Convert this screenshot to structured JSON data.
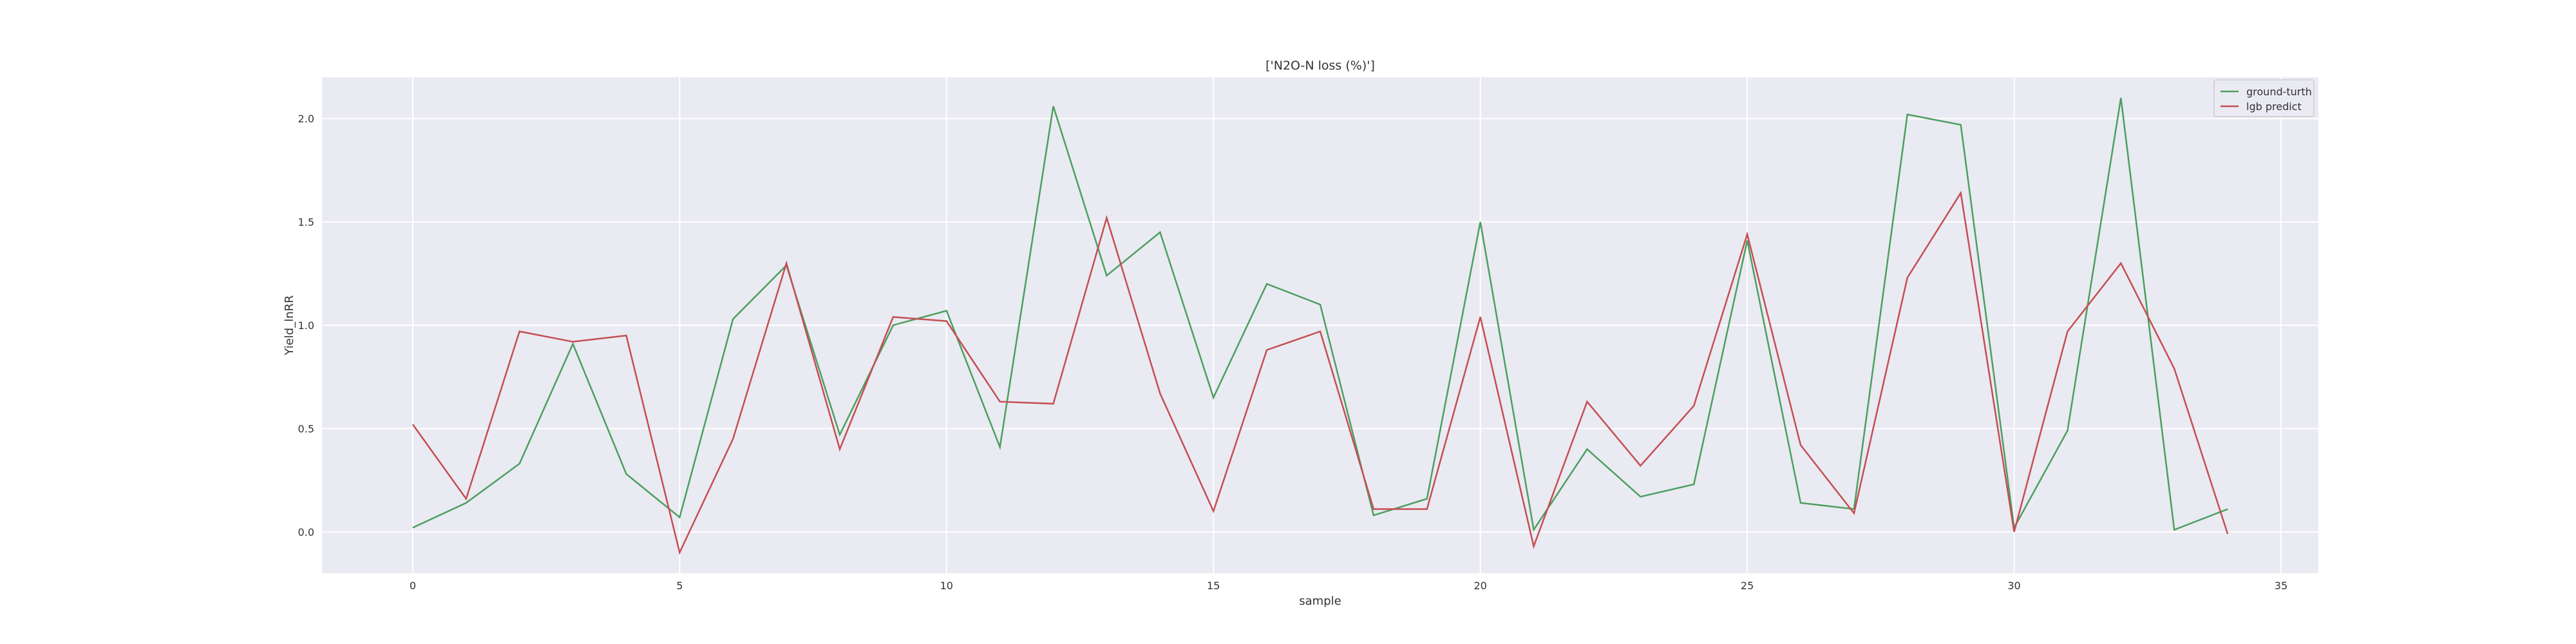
{
  "chart_data": {
    "type": "line",
    "title": "['N2O-N loss (%)']",
    "xlabel": "sample",
    "ylabel": "Yield_lnRR",
    "xlim": [
      -1.7,
      35.7
    ],
    "ylim": [
      -0.2,
      2.2
    ],
    "x_ticks": [
      0,
      5,
      10,
      15,
      20,
      25,
      30,
      35
    ],
    "y_ticks": [
      0.0,
      0.5,
      1.0,
      1.5,
      2.0
    ],
    "y_tick_labels": [
      "0.0",
      "0.5",
      "1.0",
      "1.5",
      "2.0"
    ],
    "grid": true,
    "legend_position": "top-right",
    "x": [
      0,
      1,
      2,
      3,
      4,
      5,
      6,
      7,
      8,
      9,
      10,
      11,
      12,
      13,
      14,
      15,
      16,
      17,
      18,
      19,
      20,
      21,
      22,
      23,
      24,
      25,
      26,
      27,
      28,
      29,
      30,
      31,
      32,
      33,
      34
    ],
    "series": [
      {
        "name": "ground-turth",
        "color": "#4c9f5f",
        "values": [
          0.02,
          0.14,
          0.33,
          0.91,
          0.28,
          0.07,
          1.03,
          1.29,
          0.47,
          1.0,
          1.07,
          0.41,
          2.06,
          1.24,
          1.45,
          0.65,
          1.2,
          1.1,
          0.08,
          0.16,
          1.5,
          0.01,
          0.4,
          0.17,
          0.23,
          1.41,
          0.14,
          0.11,
          2.02,
          1.97,
          0.02,
          0.49,
          2.1,
          0.01,
          0.11
        ]
      },
      {
        "name": "lgb predict",
        "color": "#c44e52",
        "values": [
          0.52,
          0.16,
          0.97,
          0.92,
          0.95,
          -0.1,
          0.45,
          1.3,
          0.4,
          1.04,
          1.02,
          0.63,
          0.62,
          1.52,
          0.67,
          0.1,
          0.88,
          0.97,
          0.11,
          0.11,
          1.04,
          -0.07,
          0.63,
          0.32,
          0.61,
          1.44,
          0.42,
          0.09,
          1.23,
          1.64,
          0.0,
          0.97,
          1.3,
          0.79,
          -0.01
        ]
      }
    ]
  }
}
